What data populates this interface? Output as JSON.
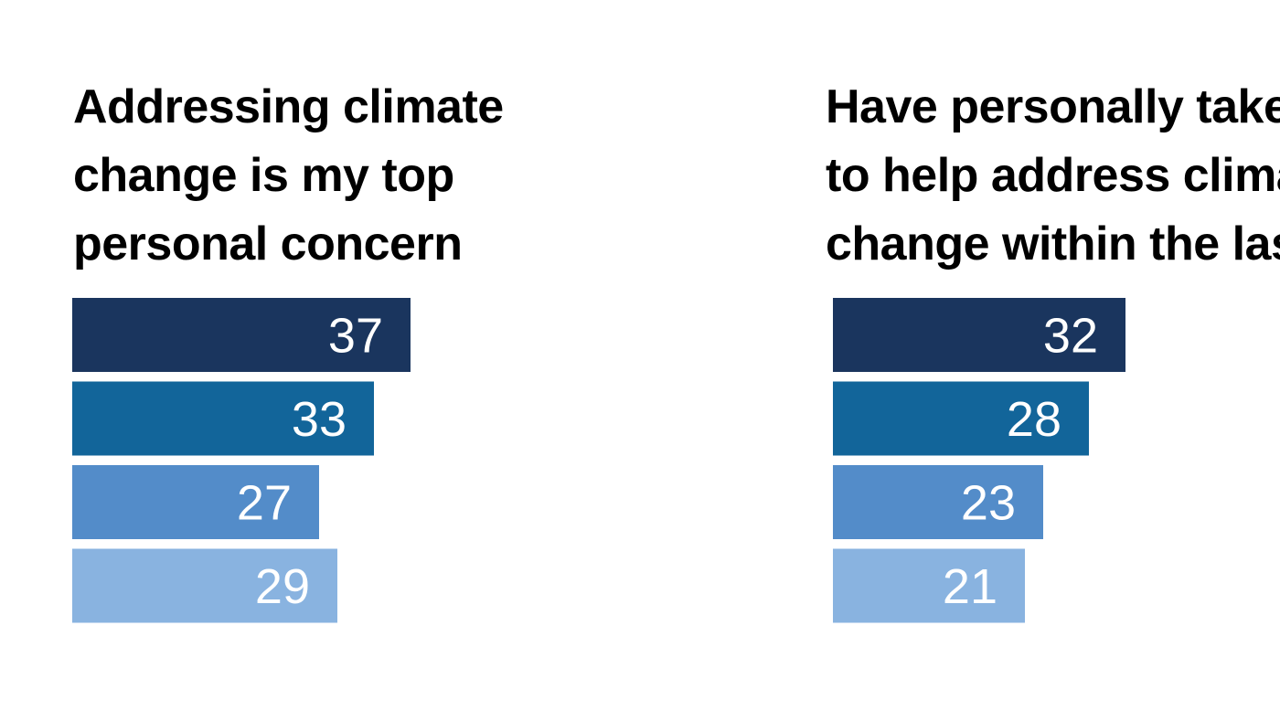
{
  "chart_data": [
    {
      "type": "bar",
      "orientation": "horizontal",
      "title": "Addressing climate\nchange is my top\npersonal concern",
      "values": [
        37,
        33,
        27,
        29
      ],
      "colors": [
        "#1a355e",
        "#12659a",
        "#538cc9",
        "#89b3e0"
      ],
      "value_labels": true,
      "grid": false
    },
    {
      "type": "bar",
      "orientation": "horizontal",
      "title": "Have personally taken action\nto help address climate\nchange within the last year",
      "values": [
        32,
        28,
        23,
        21
      ],
      "colors": [
        "#1a355e",
        "#12659a",
        "#538cc9",
        "#89b3e0"
      ],
      "value_labels": true,
      "grid": false
    }
  ]
}
